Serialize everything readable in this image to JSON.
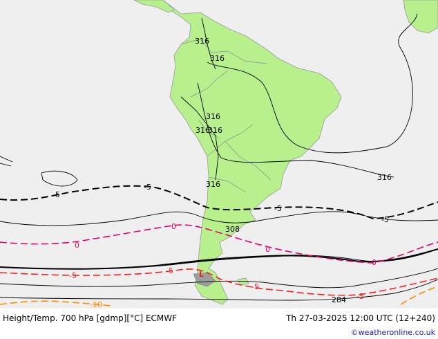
{
  "map": {
    "colors": {
      "sea": "#efefef",
      "land": "#b8f08e",
      "coast": "#9a9a9a",
      "height": "#000000",
      "temp_zero": "#e0006a",
      "temp_neg5_red": "#ee2020",
      "temp_neg10": "#ff8800"
    },
    "height_labels": [
      "316",
      "316",
      "316",
      "316",
      "316",
      "316",
      "316",
      "308",
      "284"
    ],
    "temp_labels": {
      "minus5_north": [
        "-5",
        "-5",
        "-5",
        "-5"
      ],
      "zero": [
        "0",
        "0",
        "0",
        "0"
      ],
      "minus5_south": [
        "-5",
        "-5",
        "-5",
        "-5"
      ],
      "minus10": "-10"
    }
  },
  "footer": {
    "title": "Height/Temp. 700 hPa [gdmp][°C] ECMWF",
    "valid": "Th 27-03-2025 12:00 UTC (12+240)",
    "credit": "©weatheronline.co.uk"
  }
}
